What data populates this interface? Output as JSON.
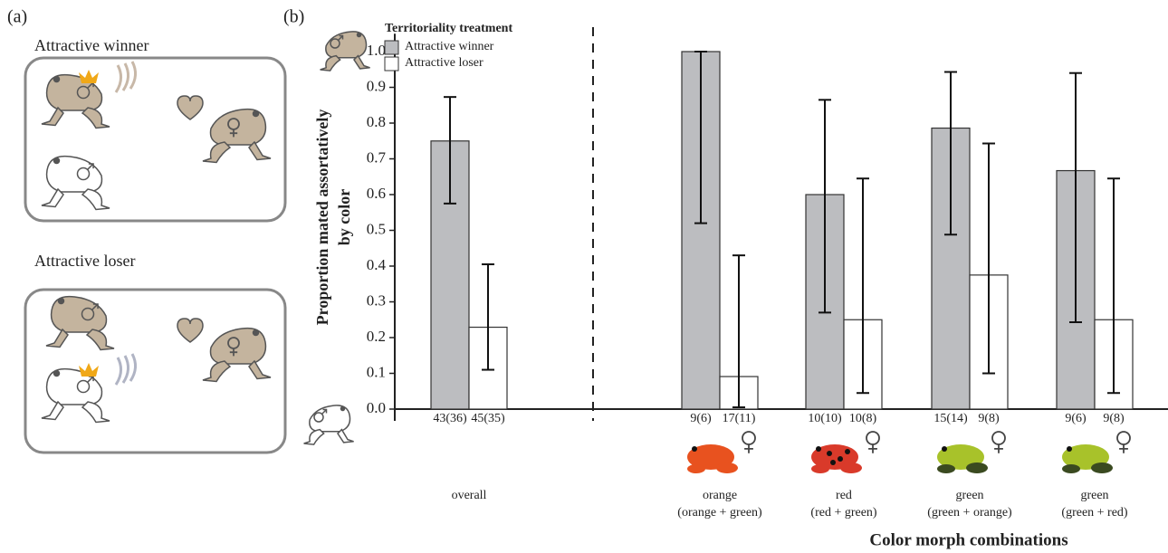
{
  "panel_a": {
    "label": "(a)",
    "scenarios": [
      {
        "title": "Attractive winner"
      },
      {
        "title": "Attractive loser"
      }
    ]
  },
  "chart_data": {
    "type": "bar",
    "panel_label": "(b)",
    "y_label": [
      "Proportion mated assortatively",
      "by color"
    ],
    "x_label": "Color morph combinations",
    "legend_title": "Territoriality treatment",
    "categories": [
      "overall",
      "orange",
      "red",
      "green",
      "green"
    ],
    "category_notes": [
      null,
      "(orange + green)",
      "(red + green)",
      "(green + orange)",
      "(green + red)"
    ],
    "series": [
      {
        "name": "Attractive winner",
        "color": "#bcbdc0",
        "values": [
          0.75,
          1.0,
          0.6,
          0.786,
          0.667
        ],
        "lower": [
          0.575,
          0.52,
          0.27,
          0.488,
          0.243
        ],
        "upper": [
          0.873,
          1.0,
          0.865,
          0.943,
          0.94
        ],
        "n_labels": [
          "43(36)",
          "9(6)",
          "10(10)",
          "15(14)",
          "9(6)"
        ]
      },
      {
        "name": "Attractive loser",
        "color": "#ffffff",
        "values": [
          0.229,
          0.091,
          0.25,
          0.375,
          0.25
        ],
        "lower": [
          0.11,
          0.005,
          0.045,
          0.1,
          0.045
        ],
        "upper": [
          0.405,
          0.43,
          0.645,
          0.743,
          0.645
        ],
        "n_labels": [
          "45(35)",
          "17(11)",
          "10(8)",
          "9(8)",
          "9(8)"
        ]
      }
    ],
    "ylim": [
      0,
      1.05
    ],
    "yticks": [
      {
        "value": 0,
        "label": "0.0"
      },
      0.1,
      0.2,
      0.3,
      0.4,
      0.5,
      0.6,
      0.7,
      0.8,
      0.9,
      {
        "value": 1,
        "label": "1.0"
      }
    ],
    "legend": "upper-left"
  }
}
